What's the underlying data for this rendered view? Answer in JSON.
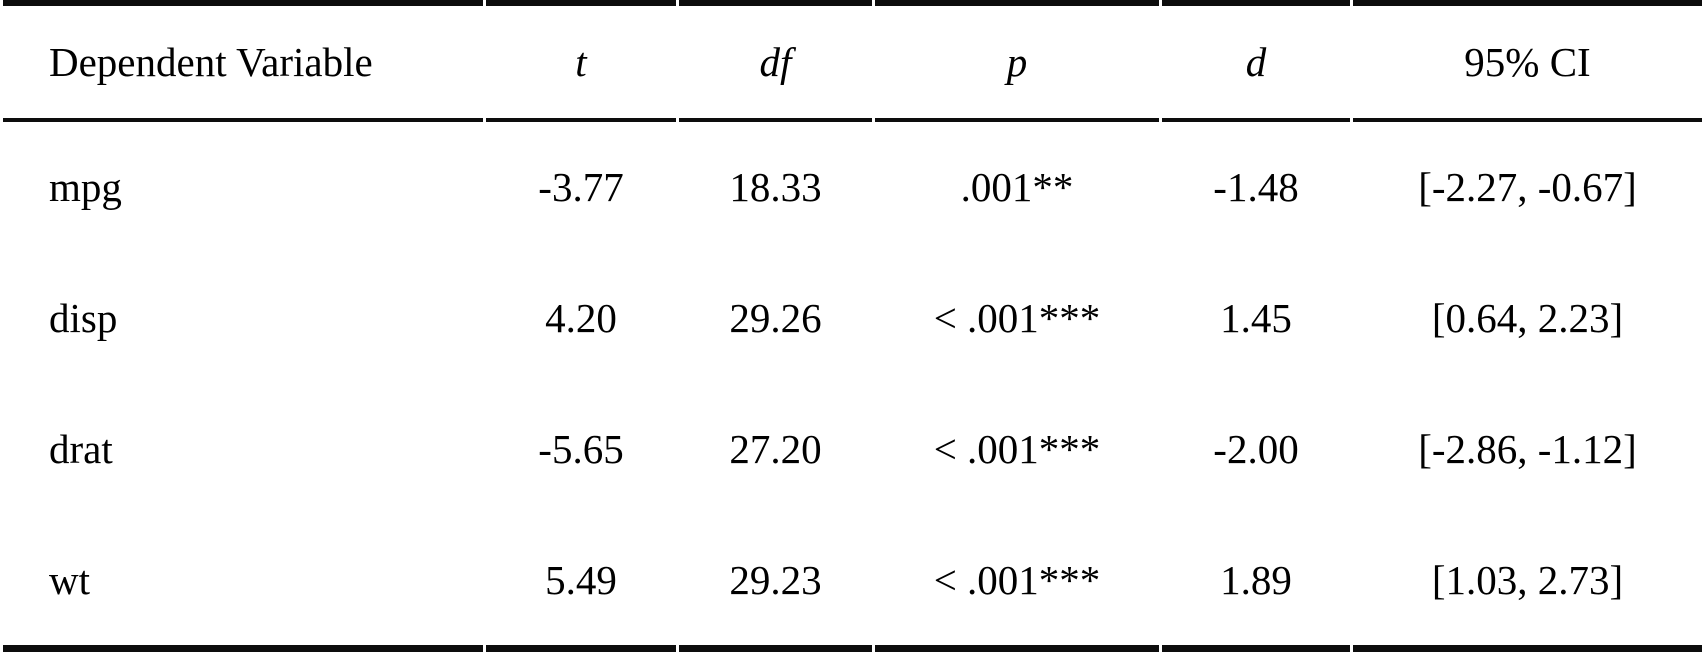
{
  "table": {
    "header": [
      "Dependent Variable",
      "t",
      "df",
      "p",
      "d",
      "95% CI"
    ],
    "rows": [
      [
        "mpg",
        "-3.77",
        "18.33",
        ".001**",
        "-1.48",
        "[-2.27, -0.67]"
      ],
      [
        "disp",
        "4.20",
        "29.26",
        "< .001***",
        "1.45",
        "[0.64, 2.23]"
      ],
      [
        "drat",
        "-5.65",
        "27.20",
        "< .001***",
        "-2.00",
        "[-2.86, -1.12]"
      ],
      [
        "wt",
        "5.49",
        "29.23",
        "< .001***",
        "1.89",
        "[1.03, 2.73]"
      ]
    ],
    "colors": {
      "text": "#000000",
      "rule": "#0d0d0d",
      "background": "#ffffff"
    }
  }
}
